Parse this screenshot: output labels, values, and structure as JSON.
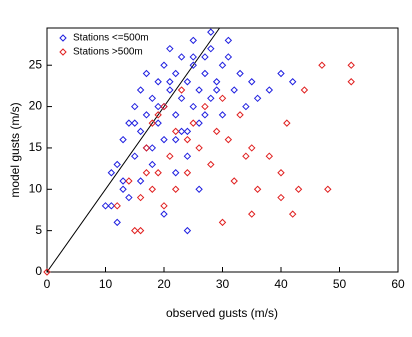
{
  "chart_data": {
    "type": "scatter",
    "xlabel": "observed gusts (m/s)",
    "ylabel": "model gusts (m/s)",
    "xlim": [
      0,
      60
    ],
    "ylim": [
      0,
      29.5
    ],
    "xticks": [
      0,
      10,
      20,
      30,
      40,
      50,
      60
    ],
    "yticks": [
      0,
      5,
      10,
      15,
      20,
      25
    ],
    "legend": "upper left",
    "series": [
      {
        "name": "Stations <=500m",
        "color": "#2020e0",
        "x": [
          10,
          11,
          12,
          13,
          13,
          14,
          15,
          15,
          16,
          16,
          17,
          17,
          18,
          18,
          19,
          19,
          20,
          20,
          20,
          21,
          21,
          22,
          22,
          22,
          23,
          23,
          24,
          24,
          25,
          25,
          25,
          26,
          26,
          27,
          27,
          28,
          28,
          29,
          30,
          30,
          31,
          32,
          33,
          34,
          35,
          36,
          38,
          40,
          42,
          12,
          14,
          16,
          18,
          20,
          22,
          24,
          26,
          28,
          15,
          17,
          19,
          21,
          23,
          25,
          27,
          29,
          31,
          13,
          11,
          24
        ],
        "values": [
          8,
          12,
          13,
          16,
          10,
          18,
          14,
          20,
          17,
          22,
          19,
          24,
          21,
          15,
          23,
          18,
          25,
          20,
          16,
          22,
          27,
          19,
          24,
          12,
          21,
          26,
          23,
          17,
          25,
          20,
          28,
          22,
          18,
          24,
          26,
          21,
          27,
          23,
          25,
          19,
          26,
          22,
          24,
          20,
          23,
          21,
          22,
          24,
          23,
          6,
          9,
          11,
          13,
          7,
          16,
          14,
          10,
          29,
          18,
          15,
          20,
          23,
          17,
          26,
          19,
          22,
          28,
          11,
          8,
          5
        ]
      },
      {
        "name": "Stations >500m",
        "color": "#e02020",
        "x": [
          0,
          12,
          14,
          15,
          16,
          16,
          17,
          18,
          18,
          19,
          20,
          20,
          21,
          22,
          22,
          23,
          24,
          25,
          26,
          27,
          28,
          29,
          30,
          31,
          32,
          33,
          34,
          35,
          36,
          38,
          40,
          40,
          41,
          42,
          43,
          44,
          47,
          48,
          52,
          52,
          30,
          24,
          19,
          17,
          35
        ],
        "values": [
          0,
          8,
          11,
          5,
          5,
          9,
          15,
          10,
          18,
          12,
          8,
          20,
          14,
          10,
          17,
          22,
          12,
          18,
          15,
          20,
          13,
          17,
          21,
          16,
          11,
          19,
          14,
          7,
          10,
          14,
          9,
          12,
          18,
          7,
          10,
          22,
          25,
          10,
          25,
          23,
          6,
          16,
          19,
          12,
          15
        ]
      }
    ]
  }
}
